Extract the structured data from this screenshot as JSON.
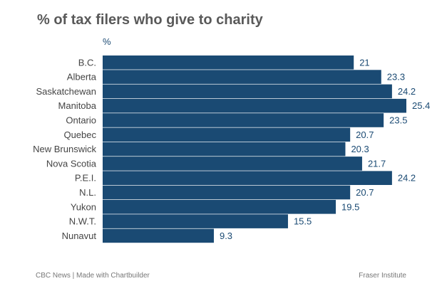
{
  "chart_data": {
    "type": "bar",
    "orientation": "horizontal",
    "title": "% of tax filers who give to charity",
    "unit_label": "%",
    "categories": [
      "B.C.",
      "Alberta",
      "Saskatchewan",
      "Manitoba",
      "Ontario",
      "Quebec",
      "New Brunswick",
      "Nova Scotia",
      "P.E.I.",
      "N.L.",
      "Yukon",
      "N.W.T.",
      "Nunavut"
    ],
    "values": [
      21,
      23.3,
      24.2,
      25.4,
      23.5,
      20.7,
      20.3,
      21.7,
      24.2,
      20.7,
      19.5,
      15.5,
      9.3
    ],
    "value_labels": [
      "21",
      "23.3",
      "24.2",
      "25.4",
      "23.5",
      "20.7",
      "20.3",
      "21.7",
      "24.2",
      "20.7",
      "19.5",
      "15.5",
      "9.3"
    ],
    "xlim": [
      0,
      25.4
    ],
    "bar_color": "#1a4a73",
    "label_color": "#1a4a73",
    "category_color": "#444444",
    "grid": false,
    "legend": "none"
  },
  "footer": {
    "credit": "CBC News | Made with Chartbuilder",
    "source": "Fraser Institute"
  }
}
